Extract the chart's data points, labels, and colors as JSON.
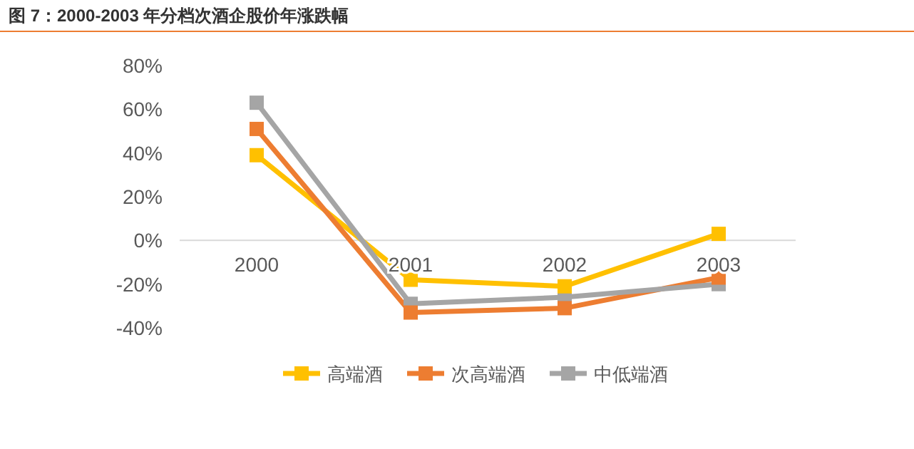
{
  "chart_data": {
    "type": "line",
    "title": "图 7：2000-2003 年分档次酒企股价年涨跌幅",
    "categories": [
      "2000",
      "2001",
      "2002",
      "2003"
    ],
    "series": [
      {
        "name": "高端酒",
        "color": "#ffc000",
        "values": [
          39,
          -18,
          -21,
          3
        ]
      },
      {
        "name": "次高端酒",
        "color": "#ed7d31",
        "values": [
          51,
          -33,
          -31,
          -17
        ]
      },
      {
        "name": "中低端酒",
        "color": "#a5a5a5",
        "values": [
          63,
          -29,
          -26,
          -20
        ]
      }
    ],
    "ylim": [
      -40,
      80
    ],
    "yticks": [
      {
        "value": -40,
        "label": "-40%"
      },
      {
        "value": -20,
        "label": "-20%"
      },
      {
        "value": 0,
        "label": "0%"
      },
      {
        "value": 20,
        "label": "20%"
      },
      {
        "value": 40,
        "label": "40%"
      },
      {
        "value": 60,
        "label": "60%"
      },
      {
        "value": 80,
        "label": "80%"
      }
    ],
    "grid": false,
    "legend": "bottom",
    "marker": "square",
    "line_style": "solid"
  }
}
